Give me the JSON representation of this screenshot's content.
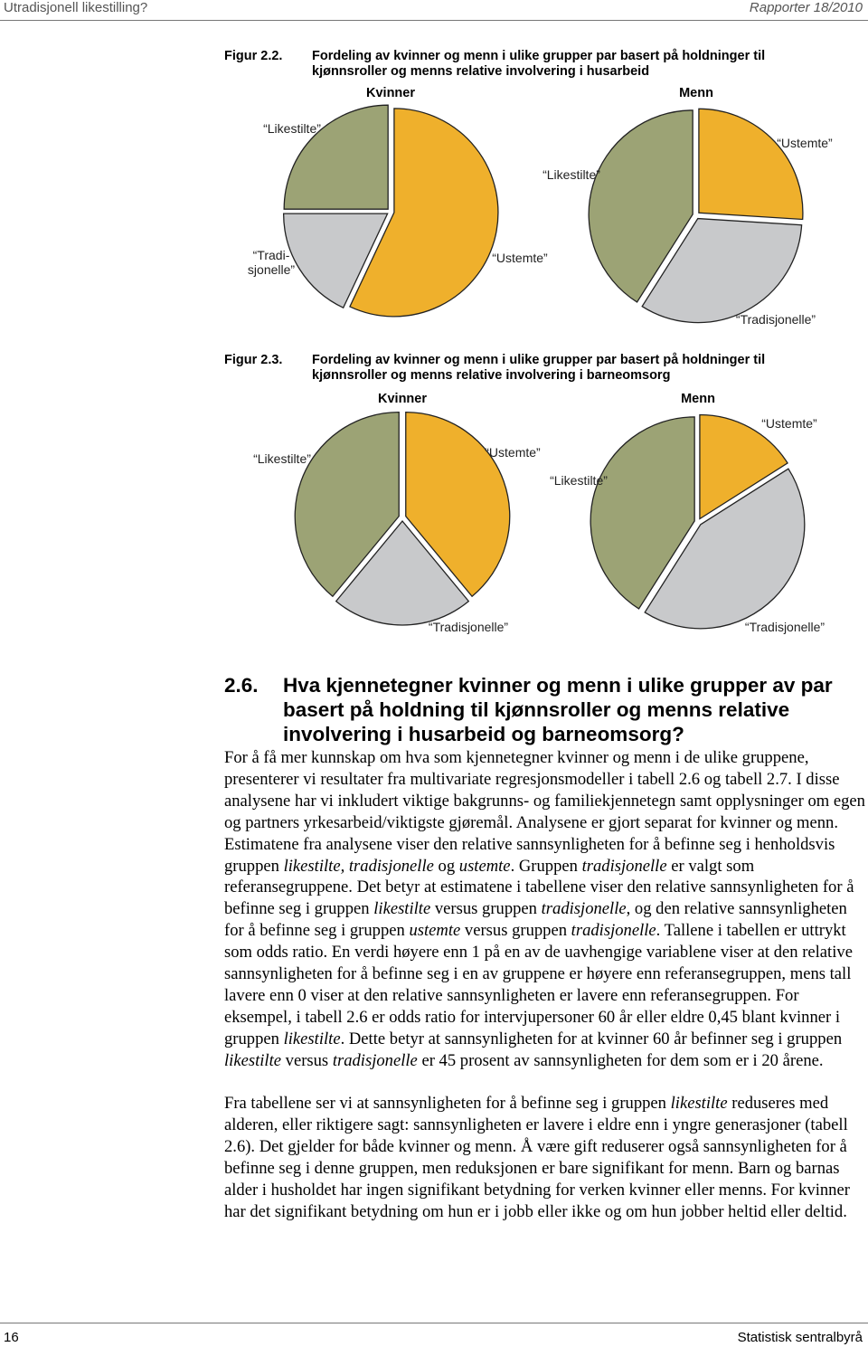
{
  "header": {
    "left": "Utradisjonell likestilling?",
    "right": "Rapporter 18/2010"
  },
  "figures": [
    {
      "label": "Figur 2.2.",
      "caption": "Fordeling av kvinner og menn i ulike grupper par basert på holdninger til kjønnsroller og menns relative involvering i husarbeid"
    },
    {
      "label": "Figur 2.3.",
      "caption": "Fordeling av kvinner og menn i ulike grupper par basert på holdninger til kjønnsroller og menns relative involvering i barneomsorg"
    }
  ],
  "chart_data": [
    {
      "type": "pie",
      "title": "Kvinner",
      "categories": [
        "“Ustemte”",
        "“Tradi-\nsjonelle”",
        "“Likestilte”"
      ],
      "values": [
        57,
        18,
        25
      ],
      "colors": [
        "#efb02c",
        "#c8c9cb",
        "#9ca375"
      ]
    },
    {
      "type": "pie",
      "title": "Menn",
      "categories": [
        "“Ustemte”",
        "“Tradisjonelle”",
        "“Likestilte”"
      ],
      "values": [
        26,
        33,
        41
      ],
      "colors": [
        "#efb02c",
        "#c8c9cb",
        "#9ca375"
      ]
    },
    {
      "type": "pie",
      "title": "Kvinner",
      "categories": [
        "“Ustemte”",
        "“Tradisjonelle”",
        "“Likestilte”"
      ],
      "values": [
        39,
        22,
        39
      ],
      "colors": [
        "#efb02c",
        "#c8c9cb",
        "#9ca375"
      ]
    },
    {
      "type": "pie",
      "title": "Menn",
      "categories": [
        "“Ustemte”",
        "“Tradisjonelle”",
        "“Likestilte”"
      ],
      "values": [
        16,
        43,
        41
      ],
      "colors": [
        "#efb02c",
        "#c8c9cb",
        "#9ca375"
      ]
    }
  ],
  "section": {
    "number": "2.6.",
    "title": "Hva kjennetegner kvinner og menn i ulike grupper av par basert på holdning til kjønnsroller og menns relative involvering i husarbeid og barneomsorg?"
  },
  "body": [
    {
      "runs": [
        "For å få mer kunnskap om hva som kjennetegner kvinner og menn i de ulike gruppene, presenterer vi resultater fra multivariate regresjonsmodeller i tabell 2.6 og tabell 2.7. I disse analysene har vi inkludert viktige bakgrunns- og familie­kjennetegn samt opplysninger om egen og partners yrkesarbeid/viktigste gjøremål. Analysene er gjort separat for kvinner og menn. Estimatene fra analysene viser den relative sannsynligheten for å befinne seg i henholdsvis gruppen ",
        {
          "em": "likestilte,"
        },
        " ",
        {
          "em": "tradisjonelle"
        },
        " og ",
        {
          "em": "ustemte"
        },
        ". Gruppen ",
        {
          "em": "tradisjonelle"
        },
        " er valgt som referansegruppene. Det betyr at estimatene i tabellene viser den relative sannsynligheten for å befinne seg i gruppen ",
        {
          "em": "likestilte"
        },
        " versus gruppen ",
        {
          "em": "tradisjonelle"
        },
        ", og den relative sannsynlig­heten for å befinne seg i gruppen ",
        {
          "em": "ustemte"
        },
        " versus gruppen ",
        {
          "em": "tradisjonelle"
        },
        ". Tallene i tabellen er uttrykt som odds ratio. En verdi høyere enn 1 på en av de uavhengige variablene viser at den relative sannsynligheten for å befinne seg i en av gruppene er høyere enn referansegruppen, mens tall lavere enn 0 viser at den relative sannsynligheten er lavere enn referansegruppen. For eksempel, i tabell 2.6 er odds ratio for intervjupersoner 60 år eller eldre 0,45 blant kvinner i gruppen ",
        {
          "em": "likestilte"
        },
        ". Dette betyr at sannsynligheten for at kvinner 60 år befinner seg i gruppen ",
        {
          "em": "likestilte"
        },
        " versus ",
        {
          "em": "tradisjonelle"
        },
        " er 45 prosent av sannsynligheten for dem som er i 20 årene."
      ]
    },
    {
      "runs": [
        "Fra tabellene ser vi at sannsynligheten for å befinne seg i gruppen ",
        {
          "em": "likestilte"
        },
        " reduseres med alderen, eller riktigere sagt: sannsynligheten er lavere i eldre enn i yngre generasjoner (tabell 2.6). Det gjelder for både kvinner og menn. Å være gift reduserer også sannsynligheten for å befinne seg i denne gruppen, men reduksjonen er bare signifikant for menn. Barn og barnas alder i husholdet har ingen signifikant betydning for verken kvinner eller menns. For kvinner har det signifikant betydning om hun er i jobb eller ikke og om hun jobber heltid eller deltid."
      ]
    }
  ],
  "footer": {
    "page": "16",
    "publisher": "Statistisk sentralbyrå"
  }
}
